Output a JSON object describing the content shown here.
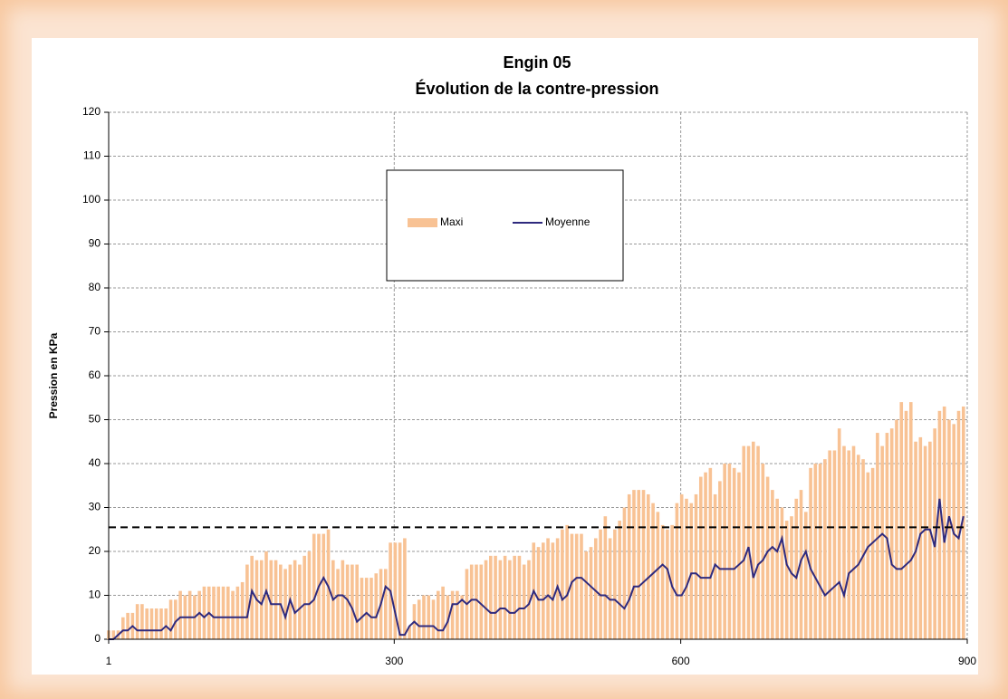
{
  "chart_data": {
    "type": "bar",
    "title": "Engin 05",
    "subtitle": "Évolution de la contre-pression",
    "ylabel": "Pression en KPa",
    "xlim": [
      1,
      900
    ],
    "xticks": [
      1,
      300,
      600,
      900
    ],
    "ylim": [
      0,
      120
    ],
    "yticks": [
      0,
      10,
      20,
      30,
      40,
      50,
      60,
      70,
      80,
      90,
      100,
      110,
      120
    ],
    "grid": true,
    "legend": "top-center",
    "reference_line": 25.5,
    "x": [
      1,
      6,
      11,
      16,
      21,
      26,
      31,
      36,
      41,
      46,
      51,
      56,
      61,
      66,
      71,
      76,
      81,
      86,
      91,
      96,
      101,
      106,
      111,
      116,
      121,
      126,
      131,
      136,
      141,
      146,
      151,
      156,
      161,
      166,
      171,
      176,
      181,
      186,
      191,
      196,
      201,
      206,
      211,
      216,
      221,
      226,
      231,
      236,
      241,
      246,
      251,
      256,
      261,
      266,
      271,
      276,
      281,
      286,
      291,
      296,
      301,
      306,
      311,
      316,
      321,
      326,
      331,
      336,
      341,
      346,
      351,
      356,
      361,
      366,
      371,
      376,
      381,
      386,
      391,
      396,
      401,
      406,
      411,
      416,
      421,
      426,
      431,
      436,
      441,
      446,
      451,
      456,
      461,
      466,
      471,
      476,
      481,
      486,
      491,
      496,
      501,
      506,
      511,
      516,
      521,
      526,
      531,
      536,
      541,
      546,
      551,
      556,
      561,
      566,
      571,
      576,
      581,
      586,
      591,
      596,
      601,
      606,
      611,
      616,
      621,
      626,
      631,
      636,
      641,
      646,
      651,
      656,
      661,
      666,
      671,
      676,
      681,
      686,
      691,
      696,
      701,
      706,
      711,
      716,
      721,
      726,
      731,
      736,
      741,
      746,
      751,
      756,
      761,
      766,
      771,
      776,
      781,
      786,
      791,
      796,
      801,
      806,
      811,
      816,
      821,
      826,
      831,
      836,
      841,
      846,
      851,
      856,
      861,
      866,
      871,
      876,
      881,
      886,
      891,
      896
    ],
    "series": [
      {
        "name": "Maxi",
        "type": "bar",
        "color": "#f8c294",
        "values": [
          2,
          2,
          2,
          5,
          6,
          6,
          8,
          8,
          7,
          7,
          7,
          7,
          7,
          9,
          9,
          11,
          10,
          11,
          10,
          11,
          12,
          12,
          12,
          12,
          12,
          12,
          11,
          12,
          13,
          17,
          19,
          18,
          18,
          20,
          18,
          18,
          17,
          16,
          17,
          18,
          17,
          19,
          20,
          24,
          24,
          24,
          25,
          18,
          16,
          18,
          17,
          17,
          17,
          14,
          14,
          14,
          15,
          16,
          16,
          22,
          22,
          22,
          23,
          3,
          8,
          9,
          10,
          10,
          9,
          11,
          12,
          10,
          11,
          11,
          10,
          16,
          17,
          17,
          17,
          18,
          19,
          19,
          18,
          19,
          18,
          19,
          19,
          17,
          18,
          22,
          21,
          22,
          23,
          22,
          23,
          25,
          26,
          24,
          24,
          24,
          20,
          21,
          23,
          25,
          28,
          23,
          25,
          27,
          30,
          33,
          34,
          34,
          34,
          33,
          31,
          29,
          26,
          25,
          26,
          31,
          33,
          32,
          31,
          33,
          37,
          38,
          39,
          33,
          36,
          40,
          40,
          39,
          38,
          44,
          44,
          45,
          44,
          40,
          37,
          34,
          32,
          30,
          27,
          28,
          32,
          34,
          29,
          39,
          40,
          40,
          41,
          43,
          43,
          48,
          44,
          43,
          44,
          42,
          41,
          38,
          39,
          47,
          44,
          47,
          48,
          50,
          54,
          52,
          54,
          45,
          46,
          44,
          45,
          48,
          52,
          53,
          50,
          49,
          52,
          53
        ]
      },
      {
        "name": "Moyenne",
        "type": "line",
        "color": "#2f2a7e",
        "values": [
          0,
          0,
          1,
          2,
          2,
          3,
          2,
          2,
          2,
          2,
          2,
          2,
          3,
          2,
          4,
          5,
          5,
          5,
          5,
          6,
          5,
          6,
          5,
          5,
          5,
          5,
          5,
          5,
          5,
          5,
          11,
          9,
          8,
          11,
          8,
          8,
          8,
          5,
          9,
          6,
          7,
          8,
          8,
          9,
          12,
          14,
          12,
          9,
          10,
          10,
          9,
          7,
          4,
          5,
          6,
          5,
          5,
          8,
          12,
          11,
          6,
          1,
          1,
          3,
          4,
          3,
          3,
          3,
          3,
          2,
          2,
          4,
          8,
          8,
          9,
          8,
          9,
          9,
          8,
          7,
          6,
          6,
          7,
          7,
          6,
          6,
          7,
          7,
          8,
          11,
          9,
          9,
          10,
          9,
          12,
          9,
          10,
          13,
          14,
          14,
          13,
          12,
          11,
          10,
          10,
          9,
          9,
          8,
          7,
          9,
          12,
          12,
          13,
          14,
          15,
          16,
          17,
          16,
          12,
          10,
          10,
          12,
          15,
          15,
          14,
          14,
          14,
          17,
          16,
          16,
          16,
          16,
          17,
          18,
          21,
          14,
          17,
          18,
          20,
          21,
          20,
          23,
          17,
          15,
          14,
          18,
          20,
          16,
          14,
          12,
          10,
          11,
          12,
          13,
          10,
          15,
          16,
          17,
          19,
          21,
          22,
          23,
          24,
          23,
          17,
          16,
          16,
          17,
          18,
          20,
          24,
          25,
          25,
          21,
          32,
          22,
          28,
          24,
          23,
          28
        ]
      }
    ]
  }
}
